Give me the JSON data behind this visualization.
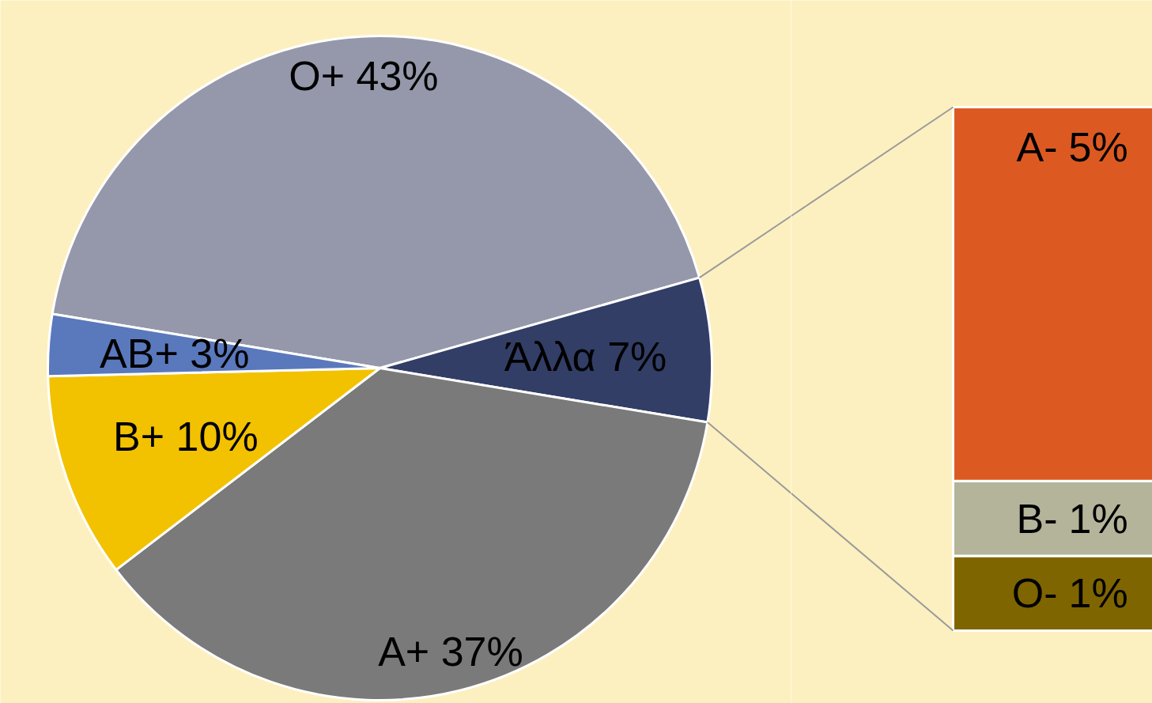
{
  "chart_data": [
    {
      "type": "pie",
      "categories": [
        "O+",
        "Άλλα",
        "A+",
        "B+",
        "AB+"
      ],
      "values": [
        43,
        7,
        37,
        10,
        3
      ],
      "colors": [
        "#9598aa",
        "#323e66",
        "#7a7a7a",
        "#f2c200",
        "#5a78bc"
      ],
      "value_labels": [
        "43%",
        "7%",
        "37%",
        "10%",
        "3%"
      ]
    },
    {
      "type": "bar",
      "stacked": true,
      "categories": [
        null
      ],
      "series": [
        {
          "name": "O-",
          "color": "#7f6500",
          "values": [
            1
          ],
          "value_labels": [
            "1%"
          ]
        },
        {
          "name": "B-",
          "color": "#b4b49a",
          "values": [
            1
          ],
          "value_labels": [
            "1%"
          ]
        },
        {
          "name": "A-",
          "color": "#dc5a22",
          "values": [
            5
          ],
          "value_labels": [
            "5%"
          ]
        }
      ]
    }
  ]
}
